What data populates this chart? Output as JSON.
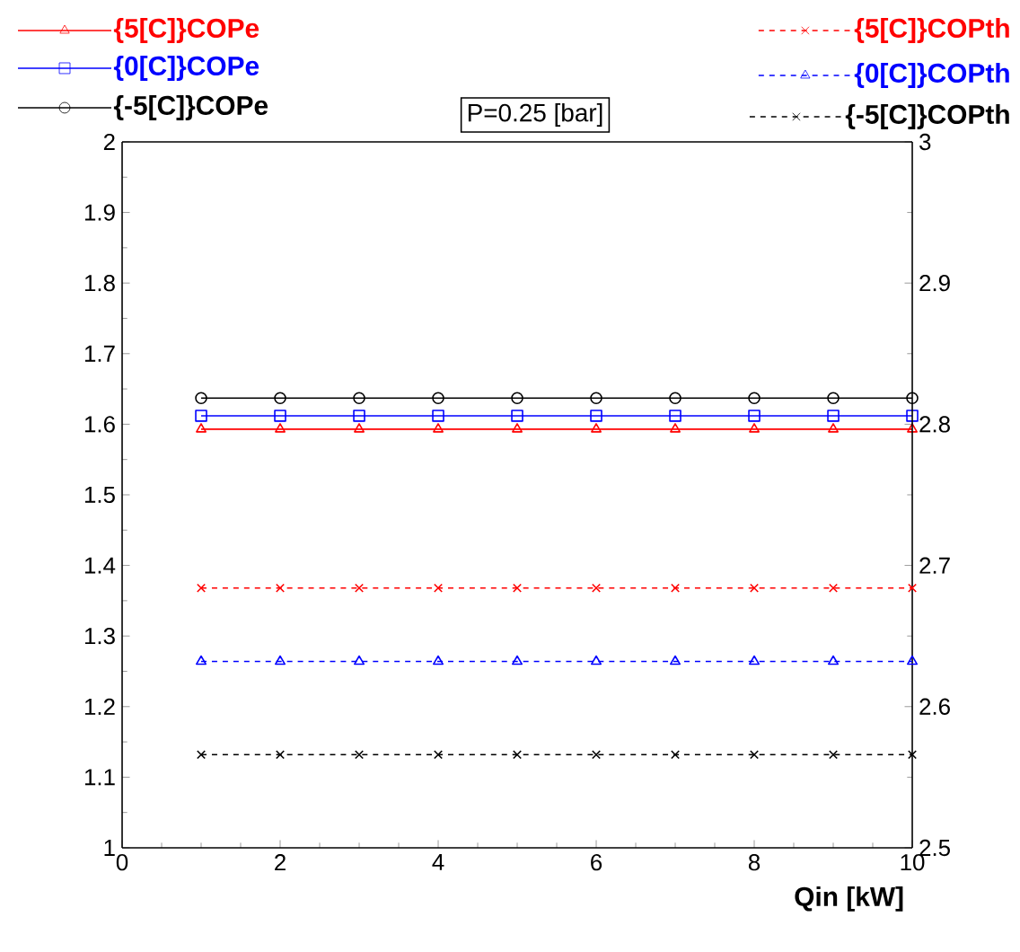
{
  "chart_data": {
    "type": "line",
    "xlabel": "Qin  [kW]",
    "annotations": [
      "P=0.25 [bar]"
    ],
    "x": [
      1,
      2,
      3,
      4,
      5,
      6,
      7,
      8,
      9,
      10
    ],
    "xlim": [
      0,
      10
    ],
    "xticks": [
      0,
      2,
      4,
      6,
      8,
      10
    ],
    "ylim": [
      1,
      2
    ],
    "yticks": [
      1,
      1.1,
      1.2,
      1.3,
      1.4,
      1.5,
      1.6,
      1.7,
      1.8,
      1.9,
      2
    ],
    "y2lim": [
      2.5,
      3
    ],
    "y2ticks": [
      2.5,
      2.6,
      2.7,
      2.8,
      2.9,
      3
    ],
    "legend": "top",
    "series": [
      {
        "name": "{5[C]}COPe",
        "color": "#ff0000",
        "marker": "triangle",
        "line_style": "solid",
        "values": [
          1.593,
          1.593,
          1.593,
          1.593,
          1.593,
          1.593,
          1.593,
          1.593,
          1.593,
          1.593
        ]
      },
      {
        "name": "{0[C]}COPe",
        "color": "#0000ff",
        "marker": "square",
        "line_style": "solid",
        "values": [
          1.612,
          1.612,
          1.612,
          1.612,
          1.612,
          1.612,
          1.612,
          1.612,
          1.612,
          1.612
        ]
      },
      {
        "name": "{-5[C]}COPe",
        "color": "#000000",
        "marker": "circle",
        "line_style": "solid",
        "values": [
          1.637,
          1.637,
          1.637,
          1.637,
          1.637,
          1.637,
          1.637,
          1.637,
          1.637,
          1.637
        ]
      },
      {
        "name": "{5[C]}COPth",
        "color": "#ff0000",
        "marker": "cross",
        "line_style": "dashed",
        "axis": "y2",
        "values": [
          2.684,
          2.684,
          2.684,
          2.684,
          2.684,
          2.684,
          2.684,
          2.684,
          2.684,
          2.684
        ]
      },
      {
        "name": "{0[C]}COPth",
        "color": "#0000ff",
        "marker": "triangle",
        "line_style": "dashed",
        "axis": "y2",
        "values": [
          2.632,
          2.632,
          2.632,
          2.632,
          2.632,
          2.632,
          2.632,
          2.632,
          2.632,
          2.632
        ]
      },
      {
        "name": "{-5[C]}COPth",
        "color": "#000000",
        "marker": "cross",
        "line_style": "dashed",
        "axis": "y2",
        "values": [
          2.566,
          2.566,
          2.566,
          2.566,
          2.566,
          2.566,
          2.566,
          2.566,
          2.566,
          2.566
        ]
      }
    ]
  }
}
